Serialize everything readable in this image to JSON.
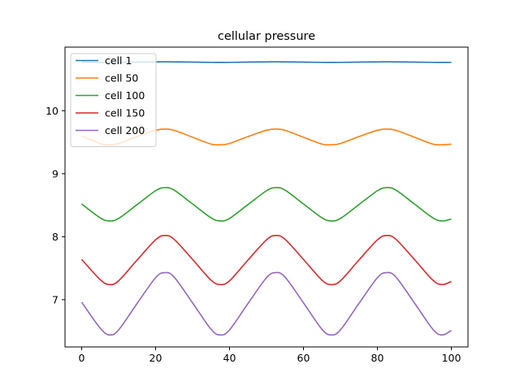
{
  "chart_data": {
    "type": "line",
    "title": "cellular pressure",
    "xlabel": "",
    "ylabel": "",
    "xlim": [
      -4.5,
      104.5
    ],
    "ylim": [
      6.25,
      11.01
    ],
    "xticks": [
      0,
      20,
      40,
      60,
      80,
      100
    ],
    "yticks": [
      7,
      8,
      9,
      10
    ],
    "grid": false,
    "legend_position": "upper-left",
    "series": [
      {
        "name": "cell 1",
        "color": "#1f77b4",
        "x": [
          0,
          5,
          10,
          15,
          20,
          22.5,
          25,
          30,
          35,
          37.5,
          40,
          45,
          50,
          52.5,
          55,
          60,
          65,
          67.5,
          70,
          75,
          80,
          82.5,
          85,
          90,
          95,
          97.5,
          100
        ],
        "y": [
          10.77,
          10.768,
          10.768,
          10.772,
          10.776,
          10.777,
          10.776,
          10.772,
          10.768,
          10.767,
          10.768,
          10.772,
          10.776,
          10.777,
          10.776,
          10.772,
          10.768,
          10.767,
          10.768,
          10.772,
          10.776,
          10.777,
          10.776,
          10.772,
          10.768,
          10.767,
          10.768
        ]
      },
      {
        "name": "cell 50",
        "color": "#ff7f0e",
        "x": [
          0,
          5,
          7.5,
          10,
          15,
          20,
          22.5,
          25,
          30,
          35,
          37.5,
          40,
          45,
          50,
          52.5,
          55,
          60,
          65,
          67.5,
          70,
          75,
          80,
          82.5,
          85,
          90,
          95,
          97.5,
          100
        ],
        "y": [
          9.6,
          9.48,
          9.46,
          9.48,
          9.59,
          9.69,
          9.71,
          9.69,
          9.58,
          9.47,
          9.46,
          9.48,
          9.59,
          9.69,
          9.71,
          9.69,
          9.58,
          9.47,
          9.46,
          9.48,
          9.59,
          9.69,
          9.71,
          9.69,
          9.58,
          9.47,
          9.46,
          9.47
        ]
      },
      {
        "name": "cell 100",
        "color": "#2ca02c",
        "x": [
          0,
          5,
          7.5,
          10,
          15,
          20,
          22.5,
          25,
          30,
          35,
          37.5,
          40,
          45,
          50,
          52.5,
          55,
          60,
          65,
          67.5,
          70,
          75,
          80,
          82.5,
          85,
          90,
          95,
          97.5,
          100
        ],
        "y": [
          8.52,
          8.3,
          8.25,
          8.29,
          8.51,
          8.73,
          8.78,
          8.74,
          8.52,
          8.3,
          8.25,
          8.29,
          8.51,
          8.73,
          8.78,
          8.74,
          8.52,
          8.3,
          8.25,
          8.29,
          8.51,
          8.73,
          8.78,
          8.74,
          8.52,
          8.3,
          8.25,
          8.28
        ]
      },
      {
        "name": "cell 150",
        "color": "#d62728",
        "x": [
          0,
          5,
          7.5,
          10,
          15,
          20,
          22.5,
          25,
          30,
          35,
          37.5,
          40,
          45,
          50,
          52.5,
          55,
          60,
          65,
          67.5,
          70,
          75,
          80,
          82.5,
          85,
          90,
          95,
          97.5,
          100
        ],
        "y": [
          7.64,
          7.32,
          7.24,
          7.3,
          7.63,
          7.95,
          8.02,
          7.96,
          7.64,
          7.31,
          7.24,
          7.3,
          7.63,
          7.95,
          8.02,
          7.96,
          7.64,
          7.31,
          7.24,
          7.3,
          7.63,
          7.95,
          8.02,
          7.96,
          7.64,
          7.31,
          7.24,
          7.29
        ]
      },
      {
        "name": "cell 200",
        "color": "#9467bd",
        "x": [
          0,
          5,
          7.5,
          10,
          15,
          20,
          22.5,
          25,
          30,
          35,
          37.5,
          40,
          45,
          50,
          52.5,
          55,
          60,
          65,
          67.5,
          70,
          75,
          80,
          82.5,
          85,
          90,
          95,
          97.5,
          100
        ],
        "y": [
          6.96,
          6.55,
          6.44,
          6.52,
          6.94,
          7.35,
          7.43,
          7.36,
          6.95,
          6.53,
          6.44,
          6.52,
          6.94,
          7.35,
          7.43,
          7.36,
          6.95,
          6.53,
          6.44,
          6.52,
          6.94,
          7.35,
          7.43,
          7.36,
          6.95,
          6.53,
          6.44,
          6.51
        ]
      }
    ]
  }
}
